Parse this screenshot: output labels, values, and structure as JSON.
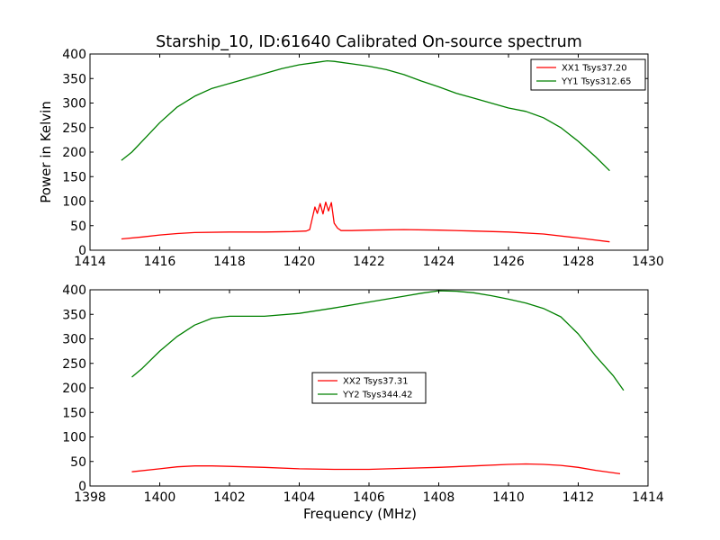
{
  "figure": {
    "title": "Starship_10, ID:61640 Calibrated On-source spectrum"
  },
  "chart_data": [
    {
      "type": "line",
      "title": "Starship_10, ID:61640 Calibrated On-source spectrum",
      "xlabel": "",
      "ylabel": "Power in Kelvin",
      "xlim": [
        1414,
        1430
      ],
      "ylim": [
        0,
        400
      ],
      "xticks": [
        "1414",
        "1416",
        "1418",
        "1420",
        "1422",
        "1424",
        "1426",
        "1428",
        "1430"
      ],
      "yticks": [
        "0",
        "50",
        "100",
        "150",
        "200",
        "250",
        "300",
        "350",
        "400"
      ],
      "grid": false,
      "legend_position": "top-right",
      "series": [
        {
          "name": "XX1 Tsys37.20",
          "color": "#ff0000",
          "points": [
            [
              1414.9,
              23
            ],
            [
              1415.5,
              27
            ],
            [
              1416,
              31
            ],
            [
              1416.5,
              34
            ],
            [
              1417,
              36
            ],
            [
              1418,
              37
            ],
            [
              1419,
              37
            ],
            [
              1419.8,
              38
            ],
            [
              1420.2,
              39
            ],
            [
              1420.3,
              42
            ],
            [
              1420.45,
              88
            ],
            [
              1420.52,
              75
            ],
            [
              1420.6,
              95
            ],
            [
              1420.68,
              74
            ],
            [
              1420.76,
              98
            ],
            [
              1420.84,
              80
            ],
            [
              1420.92,
              97
            ],
            [
              1421,
              55
            ],
            [
              1421.1,
              45
            ],
            [
              1421.2,
              40
            ],
            [
              1421.5,
              40
            ],
            [
              1422,
              41
            ],
            [
              1423,
              42
            ],
            [
              1424,
              41
            ],
            [
              1425,
              39
            ],
            [
              1426,
              37
            ],
            [
              1427,
              33
            ],
            [
              1428,
              25
            ],
            [
              1428.9,
              17
            ]
          ]
        },
        {
          "name": "YY1 Tsys312.65",
          "color": "#008000",
          "points": [
            [
              1414.9,
              183
            ],
            [
              1415.2,
              200
            ],
            [
              1415.6,
              230
            ],
            [
              1416,
              260
            ],
            [
              1416.5,
              292
            ],
            [
              1417,
              314
            ],
            [
              1417.5,
              330
            ],
            [
              1418,
              340
            ],
            [
              1418.5,
              350
            ],
            [
              1419,
              360
            ],
            [
              1419.5,
              370
            ],
            [
              1420,
              378
            ],
            [
              1420.5,
              383
            ],
            [
              1420.8,
              386
            ],
            [
              1421,
              385
            ],
            [
              1421.5,
              380
            ],
            [
              1422,
              375
            ],
            [
              1422.5,
              368
            ],
            [
              1423,
              358
            ],
            [
              1423.5,
              345
            ],
            [
              1424,
              333
            ],
            [
              1424.5,
              320
            ],
            [
              1425,
              310
            ],
            [
              1425.5,
              300
            ],
            [
              1426,
              290
            ],
            [
              1426.5,
              283
            ],
            [
              1427,
              270
            ],
            [
              1427.5,
              250
            ],
            [
              1428,
              222
            ],
            [
              1428.5,
              190
            ],
            [
              1428.9,
              162
            ]
          ]
        }
      ]
    },
    {
      "type": "line",
      "title": "",
      "xlabel": "Frequency (MHz)",
      "ylabel": "",
      "xlim": [
        1398,
        1414
      ],
      "ylim": [
        0,
        400
      ],
      "xticks": [
        "1398",
        "1400",
        "1402",
        "1404",
        "1406",
        "1408",
        "1410",
        "1412",
        "1414"
      ],
      "yticks": [
        "0",
        "50",
        "100",
        "150",
        "200",
        "250",
        "300",
        "350",
        "400"
      ],
      "grid": false,
      "legend_position": "center",
      "series": [
        {
          "name": "XX2 Tsys37.31",
          "color": "#ff0000",
          "points": [
            [
              1399.2,
              29
            ],
            [
              1400,
              35
            ],
            [
              1400.5,
              39
            ],
            [
              1401,
              41
            ],
            [
              1401.5,
              41
            ],
            [
              1402,
              40
            ],
            [
              1403,
              38
            ],
            [
              1404,
              35
            ],
            [
              1405,
              34
            ],
            [
              1406,
              34
            ],
            [
              1407,
              36
            ],
            [
              1408,
              38
            ],
            [
              1409,
              41
            ],
            [
              1410,
              44
            ],
            [
              1410.5,
              45
            ],
            [
              1411,
              44
            ],
            [
              1411.5,
              42
            ],
            [
              1412,
              38
            ],
            [
              1412.5,
              32
            ],
            [
              1413.2,
              25
            ]
          ]
        },
        {
          "name": "YY2 Tsys344.42",
          "color": "#008000",
          "points": [
            [
              1399.2,
              222
            ],
            [
              1399.5,
              240
            ],
            [
              1400,
              275
            ],
            [
              1400.5,
              305
            ],
            [
              1401,
              328
            ],
            [
              1401.5,
              342
            ],
            [
              1402,
              346
            ],
            [
              1403,
              346
            ],
            [
              1404,
              352
            ],
            [
              1405,
              363
            ],
            [
              1406,
              375
            ],
            [
              1407,
              387
            ],
            [
              1407.5,
              393
            ],
            [
              1408,
              398
            ],
            [
              1408.5,
              397
            ],
            [
              1409,
              394
            ],
            [
              1409.5,
              388
            ],
            [
              1410,
              381
            ],
            [
              1410.5,
              373
            ],
            [
              1411,
              362
            ],
            [
              1411.5,
              345
            ],
            [
              1412,
              310
            ],
            [
              1412.5,
              265
            ],
            [
              1413,
              225
            ],
            [
              1413.3,
              195
            ]
          ]
        }
      ]
    }
  ]
}
